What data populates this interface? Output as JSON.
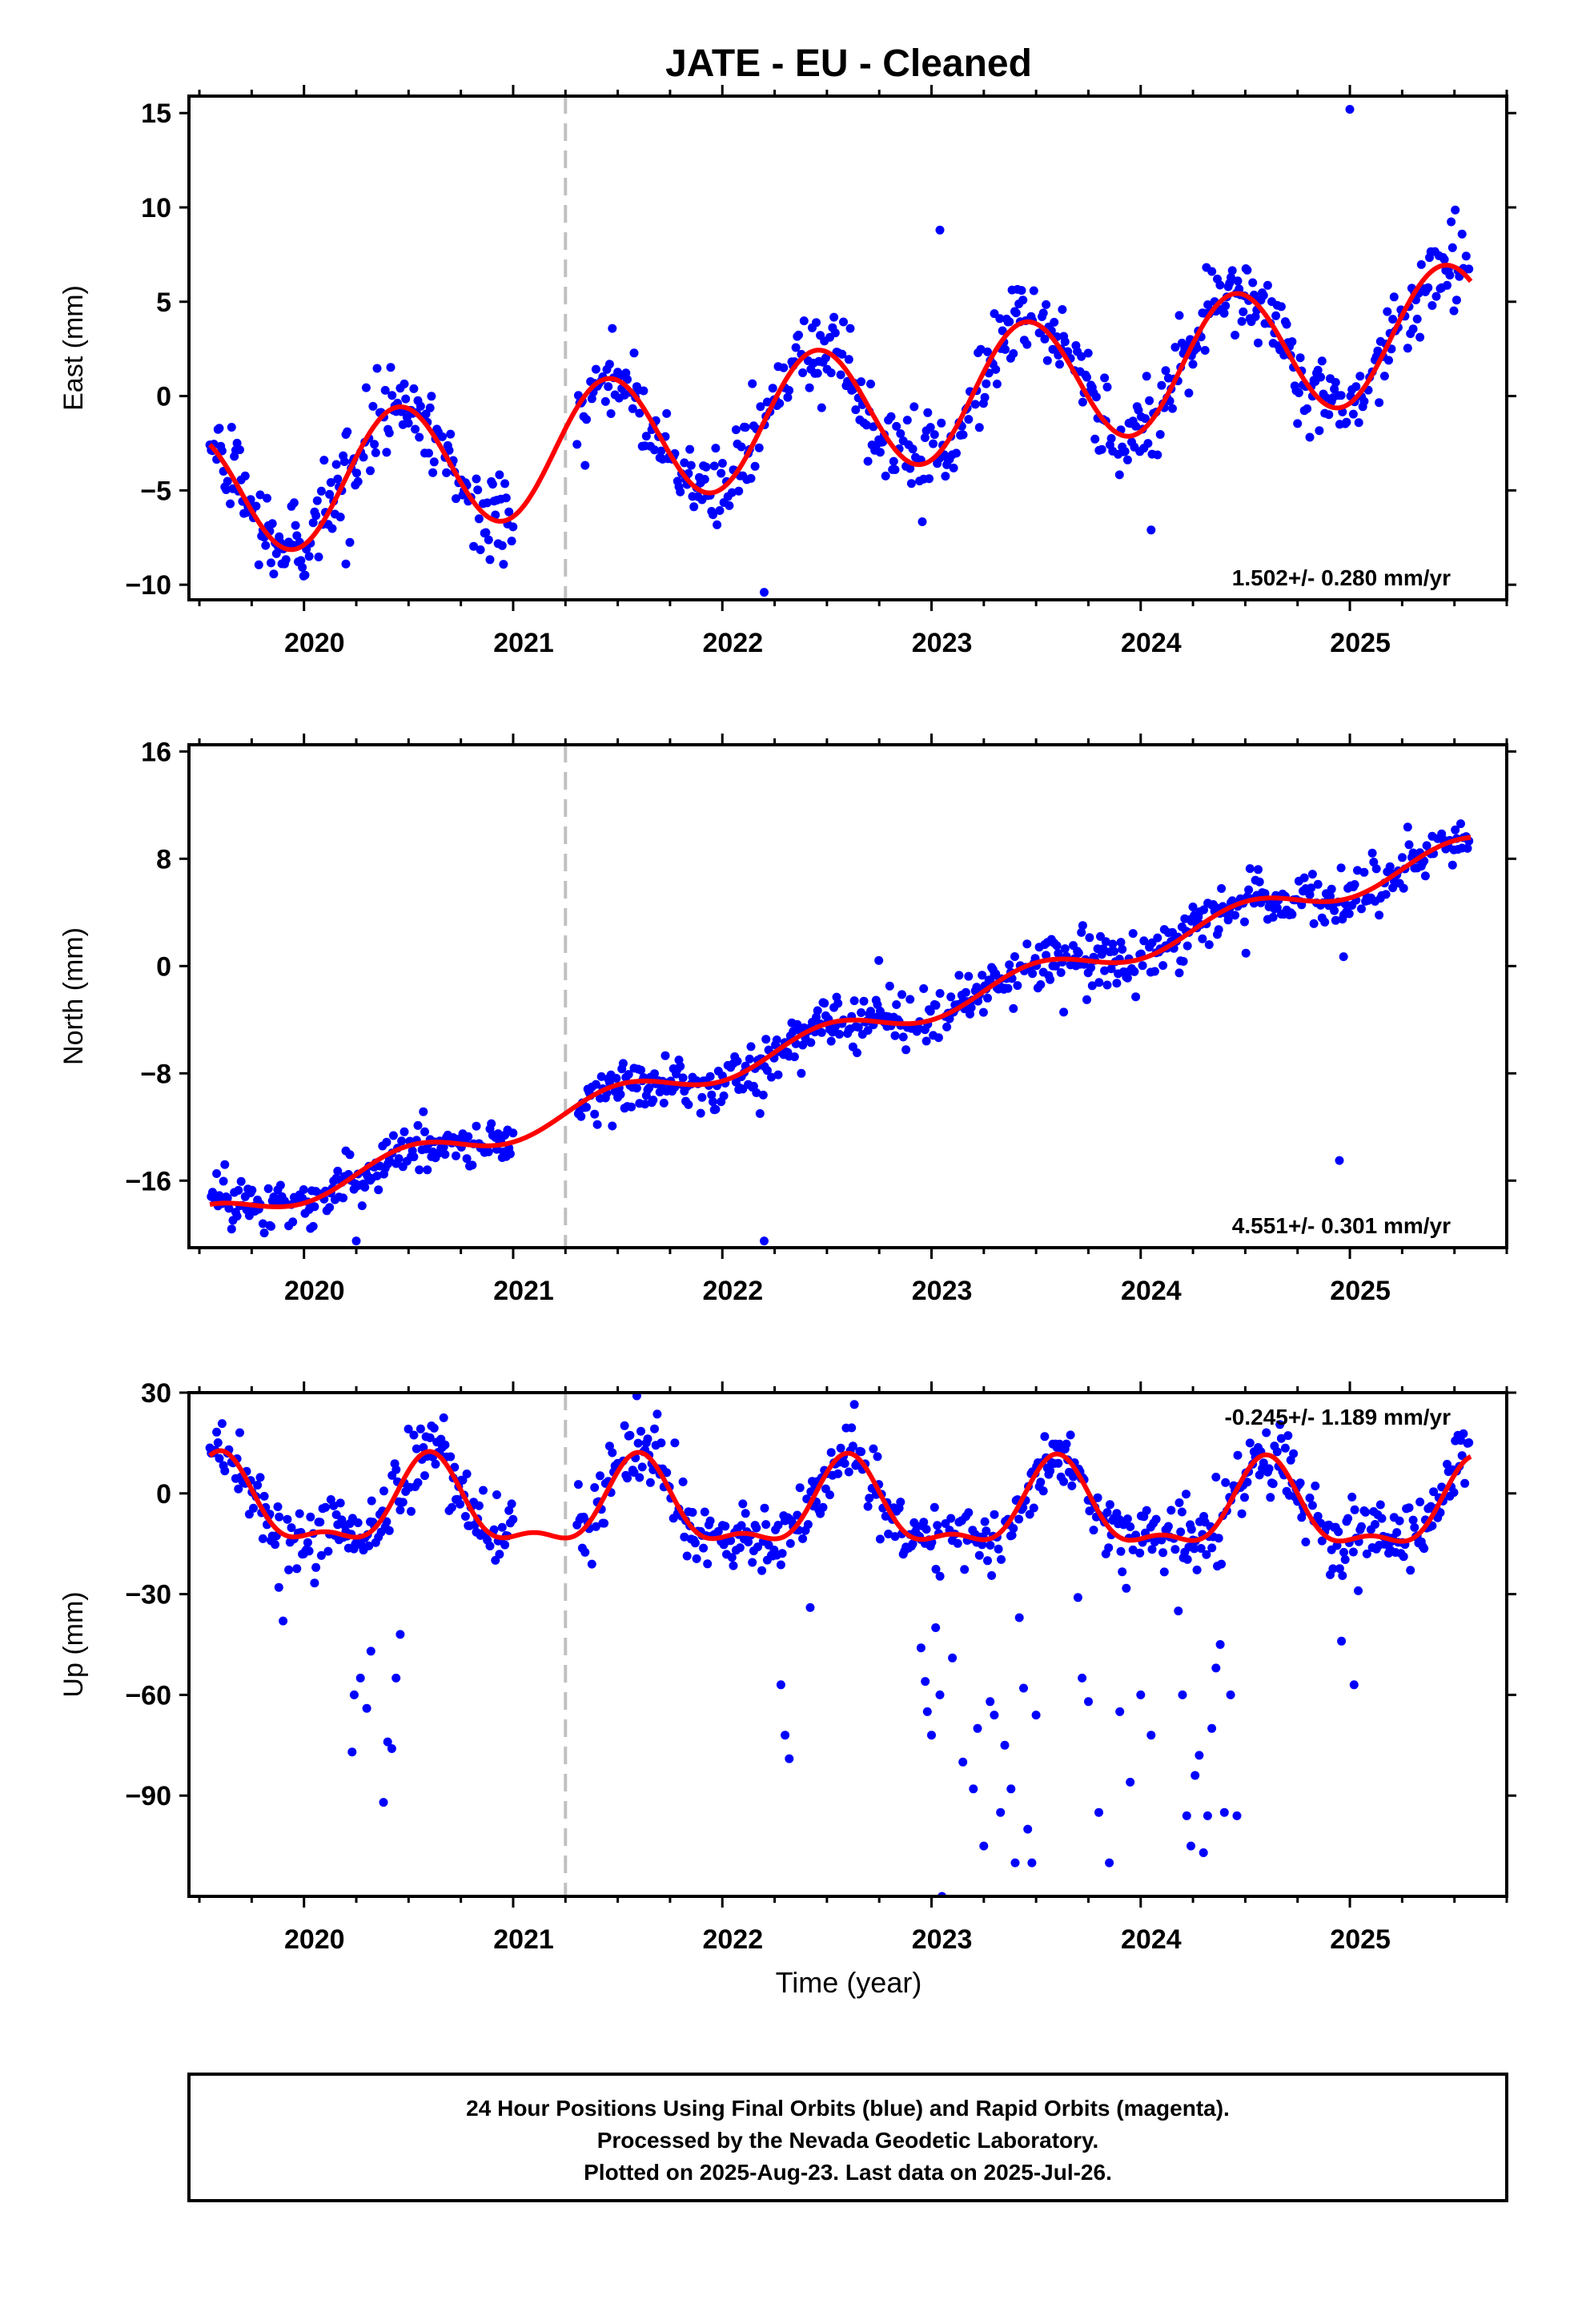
{
  "title": "JATE  - EU - Cleaned",
  "xlabel": "Time (year)",
  "footer": {
    "line1": "24 Hour Positions Using Final Orbits (blue) and Rapid Orbits (magenta).",
    "line2": "Processed by the Nevada Geodetic Laboratory.",
    "line3": "Plotted on 2025-Aug-23. Last data on 2025-Jul-26."
  },
  "colors": {
    "points": "#0000ff",
    "model": "#ff0000",
    "step_line": "#c0c0c0"
  },
  "chart_data": [
    {
      "type": "scatter",
      "component": "east",
      "ylabel": "East (mm)",
      "rate_text": "1.502+/- 0.280 mm/yr",
      "xlim": [
        2019.45,
        2025.75
      ],
      "ylim": [
        -10.8,
        15.9
      ],
      "yticks": [
        15,
        10,
        5,
        0,
        -5,
        -10
      ],
      "xticks": [
        2020,
        2021,
        2022,
        2023,
        2024,
        2025
      ],
      "step_epoch": 2021.25,
      "data_gap": [
        2021.0,
        2021.3
      ],
      "model": {
        "rate": 1.502,
        "offset": -0.9,
        "annual_amp": 3.4,
        "peak": 0.45,
        "semiannual_amp": 0.0
      },
      "scatter_sd": 1.1,
      "outliers": [
        [
          2025.0,
          15.2
        ],
        [
          2023.04,
          8.8
        ],
        [
          2022.2,
          -10.4
        ],
        [
          2020.2,
          -8.9
        ],
        [
          2024.05,
          -7.1
        ]
      ]
    },
    {
      "type": "scatter",
      "component": "north",
      "ylabel": "North (mm)",
      "rate_text": "4.551+/- 0.301 mm/yr",
      "xlim": [
        2019.45,
        2025.75
      ],
      "ylim": [
        -21.0,
        16.5
      ],
      "yticks": [
        16,
        8,
        0,
        -8,
        -16
      ],
      "xticks": [
        2020,
        2021,
        2022,
        2023,
        2024,
        2025
      ],
      "step_epoch": 2021.25,
      "data_gap": [
        2021.0,
        2021.3
      ],
      "model": {
        "rate": 4.551,
        "offset": -5.3,
        "annual_amp": 1.0,
        "peak": 0.5,
        "semiannual_amp": 0.0
      },
      "scatter_sd": 1.0,
      "outliers": [
        [
          2020.25,
          -20.5
        ],
        [
          2022.2,
          -20.5
        ],
        [
          2024.95,
          -14.5
        ],
        [
          2022.18,
          -11.0
        ],
        [
          2024.97,
          0.7
        ]
      ]
    },
    {
      "type": "scatter",
      "component": "up",
      "ylabel": "Up (mm)",
      "rate_text": "-0.245+/- 1.189 mm/yr",
      "xlim": [
        2019.45,
        2025.75
      ],
      "ylim": [
        -120,
        30
      ],
      "yticks": [
        30,
        0,
        -30,
        -60,
        -90
      ],
      "xticks": [
        2020,
        2021,
        2022,
        2023,
        2024,
        2025
      ],
      "step_epoch": 2021.25,
      "data_gap": [
        2021.0,
        2021.3
      ],
      "model": {
        "rate": -0.245,
        "offset": -5.0,
        "annual_amp": 12.0,
        "peak": 0.6,
        "semiannual_amp": 5.0
      },
      "scatter_sd": 5.5,
      "outliers": [
        [
          2019.88,
          -28
        ],
        [
          2019.9,
          -38
        ],
        [
          2020.23,
          -77
        ],
        [
          2020.24,
          -60
        ],
        [
          2020.27,
          -55
        ],
        [
          2020.3,
          -64
        ],
        [
          2020.32,
          -47
        ],
        [
          2020.38,
          -92
        ],
        [
          2020.4,
          -74
        ],
        [
          2020.42,
          -76
        ],
        [
          2020.44,
          -55
        ],
        [
          2020.46,
          -42
        ],
        [
          2022.28,
          -57
        ],
        [
          2022.3,
          -72
        ],
        [
          2022.32,
          -79
        ],
        [
          2022.42,
          -34
        ],
        [
          2022.95,
          -46
        ],
        [
          2022.97,
          -56
        ],
        [
          2022.98,
          -65
        ],
        [
          2023.0,
          -72
        ],
        [
          2023.02,
          -40
        ],
        [
          2023.04,
          -60
        ],
        [
          2023.05,
          -120
        ],
        [
          2023.1,
          -49
        ],
        [
          2023.15,
          -80
        ],
        [
          2023.2,
          -88
        ],
        [
          2023.22,
          -70
        ],
        [
          2023.25,
          -105
        ],
        [
          2023.28,
          -62
        ],
        [
          2023.3,
          -66
        ],
        [
          2023.33,
          -95
        ],
        [
          2023.35,
          -75
        ],
        [
          2023.38,
          -88
        ],
        [
          2023.4,
          -110
        ],
        [
          2023.42,
          -37
        ],
        [
          2023.44,
          -58
        ],
        [
          2023.46,
          -100
        ],
        [
          2023.48,
          -110
        ],
        [
          2023.5,
          -66
        ],
        [
          2023.7,
          -31
        ],
        [
          2023.72,
          -55
        ],
        [
          2023.75,
          -62
        ],
        [
          2023.8,
          -95
        ],
        [
          2023.85,
          -110
        ],
        [
          2023.9,
          -65
        ],
        [
          2023.95,
          -86
        ],
        [
          2024.0,
          -60
        ],
        [
          2024.05,
          -72
        ],
        [
          2024.18,
          -35
        ],
        [
          2024.2,
          -60
        ],
        [
          2024.22,
          -96
        ],
        [
          2024.24,
          -105
        ],
        [
          2024.26,
          -84
        ],
        [
          2024.28,
          -78
        ],
        [
          2024.3,
          -107
        ],
        [
          2024.32,
          -96
        ],
        [
          2024.34,
          -70
        ],
        [
          2024.36,
          -52
        ],
        [
          2024.38,
          -45
        ],
        [
          2024.4,
          -95
        ],
        [
          2024.43,
          -60
        ],
        [
          2024.46,
          -96
        ],
        [
          2024.96,
          -44
        ],
        [
          2025.02,
          -57
        ],
        [
          2025.04,
          -29
        ]
      ]
    }
  ]
}
